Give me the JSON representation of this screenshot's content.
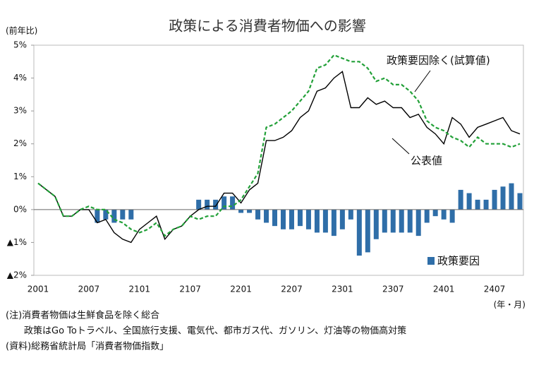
{
  "chart_data": {
    "type": "bar+line",
    "title": "政策による消費者物価への影響",
    "y_axis_label": "(前年比)",
    "x_axis_label": "(年・月)",
    "categories": [
      "2001",
      null,
      null,
      null,
      null,
      null,
      "2007",
      null,
      null,
      null,
      null,
      null,
      "2101",
      null,
      null,
      null,
      null,
      null,
      "2107",
      null,
      null,
      null,
      null,
      null,
      "2201",
      null,
      null,
      null,
      null,
      null,
      "2207",
      null,
      null,
      null,
      null,
      null,
      "2301",
      null,
      null,
      null,
      null,
      null,
      "2307",
      null,
      null,
      null,
      null,
      null,
      "2401",
      null,
      null,
      null,
      null,
      null,
      "2407",
      null,
      null,
      null
    ],
    "series": [
      {
        "name": "政策要因",
        "kind": "bar",
        "color": "#2f6ea8",
        "values": [
          0,
          0,
          0,
          0,
          0,
          0,
          0,
          -0.4,
          -0.3,
          -0.4,
          -0.3,
          -0.3,
          0,
          0,
          0,
          0,
          0,
          0,
          0,
          0.3,
          0.3,
          0.3,
          0.4,
          0.4,
          -0.1,
          -0.1,
          -0.3,
          -0.4,
          -0.5,
          -0.6,
          -0.6,
          -0.5,
          -0.6,
          -0.7,
          -0.7,
          -0.8,
          -0.6,
          -0.3,
          -1.4,
          -1.3,
          -0.9,
          -0.7,
          -0.7,
          -0.7,
          -0.7,
          -0.8,
          -0.4,
          -0.2,
          -0.3,
          -0.4,
          0.6,
          0.5,
          0.3,
          0.3,
          0.6,
          0.7,
          0.8,
          0.5
        ]
      },
      {
        "name": "公表値",
        "kind": "line",
        "color": "#000000",
        "values": [
          0.8,
          0.6,
          0.4,
          -0.2,
          -0.2,
          0.0,
          0.0,
          -0.4,
          -0.3,
          -0.7,
          -0.9,
          -1.0,
          -0.6,
          -0.4,
          -0.2,
          -0.9,
          -0.6,
          -0.5,
          -0.2,
          0.0,
          0.1,
          0.1,
          0.5,
          0.5,
          0.2,
          0.6,
          0.8,
          2.1,
          2.1,
          2.2,
          2.4,
          2.8,
          3.0,
          3.6,
          3.7,
          4.0,
          4.2,
          3.1,
          3.1,
          3.4,
          3.2,
          3.3,
          3.1,
          3.1,
          2.8,
          2.9,
          2.5,
          2.3,
          2.0,
          2.8,
          2.6,
          2.2,
          2.5,
          2.6,
          2.7,
          2.8,
          2.4,
          2.3
        ]
      },
      {
        "name": "政策要因除く(試算値)",
        "kind": "line",
        "dashed": true,
        "color": "#22a038",
        "values": [
          0.8,
          0.6,
          0.4,
          -0.2,
          -0.2,
          0.0,
          0.1,
          0.0,
          0.0,
          -0.3,
          -0.4,
          -0.6,
          -0.7,
          -0.6,
          -0.4,
          -0.8,
          -0.6,
          -0.5,
          -0.2,
          -0.3,
          -0.2,
          -0.2,
          0.1,
          0.1,
          0.3,
          0.7,
          1.1,
          2.5,
          2.6,
          2.8,
          3.0,
          3.3,
          3.6,
          4.3,
          4.4,
          4.7,
          4.6,
          4.5,
          4.5,
          4.3,
          3.9,
          4.0,
          3.8,
          3.8,
          3.6,
          3.3,
          2.7,
          2.5,
          2.4,
          2.2,
          2.1,
          1.9,
          2.2,
          2.0,
          2.0,
          2.0,
          1.9,
          2.0
        ]
      }
    ],
    "ylim": [
      -2,
      5
    ],
    "yticks": [
      {
        "value": -2,
        "label": "▲2%"
      },
      {
        "value": -1,
        "label": "▲1%"
      },
      {
        "value": 0,
        "label": "0%"
      },
      {
        "value": 1,
        "label": "1%"
      },
      {
        "value": 2,
        "label": "2%"
      },
      {
        "value": 3,
        "label": "3%"
      },
      {
        "value": 4,
        "label": "4%"
      },
      {
        "value": 5,
        "label": "5%"
      }
    ],
    "grid": false,
    "notes": [
      "(注)消費者物価は生鮮食品を除く総合",
      "　　政策はGo Toトラベル、全国旅行支援、電気代、都市ガス代、ガソリン、灯油等の物価高対策",
      "(資料)総務省統計局「消費者物価指数」"
    ]
  }
}
